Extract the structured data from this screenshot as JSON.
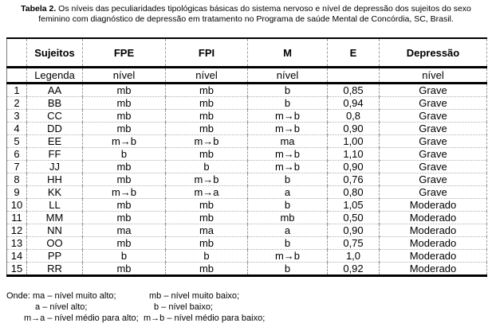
{
  "title": {
    "prefix": "Tabela 2.",
    "line1": " Os níveis das peculiaridades tipológicas básicas do sistema nervoso e nível de depressão dos sujeitos do sexo",
    "line2": "feminino com diagnóstico de depressão em tratamento no Programa de saúde Mental de Concórdia, SC, Brasil."
  },
  "table": {
    "columns": [
      "",
      "Sujeitos",
      "FPE",
      "FPI",
      "M",
      "E",
      "Depressão"
    ],
    "subheader": [
      "",
      "Legenda",
      "nível",
      "nível",
      "nível",
      "",
      "nível"
    ],
    "rows": [
      {
        "num": "1",
        "sujeito": "AA",
        "fpe": "mb",
        "fpi": "mb",
        "m": "b",
        "e": "0,85",
        "depressao": "Grave"
      },
      {
        "num": "2",
        "sujeito": "BB",
        "fpe": "mb",
        "fpi": "mb",
        "m": "b",
        "e": "0,94",
        "depressao": "Grave"
      },
      {
        "num": "3",
        "sujeito": "CC",
        "fpe": "mb",
        "fpi": "mb",
        "m": "m→b",
        "e": "0,8",
        "depressao": "Grave"
      },
      {
        "num": "4",
        "sujeito": "DD",
        "fpe": "mb",
        "fpi": "mb",
        "m": "m→b",
        "e": "0,90",
        "depressao": "Grave"
      },
      {
        "num": "5",
        "sujeito": "EE",
        "fpe": "m→b",
        "fpi": "m→b",
        "m": "ma",
        "e": "1,00",
        "depressao": "Grave"
      },
      {
        "num": "6",
        "sujeito": "FF",
        "fpe": "b",
        "fpi": "mb",
        "m": "m→b",
        "e": "1,10",
        "depressao": "Grave"
      },
      {
        "num": "7",
        "sujeito": "JJ",
        "fpe": "mb",
        "fpi": "b",
        "m": "m→b",
        "e": "0,90",
        "depressao": "Grave"
      },
      {
        "num": "8",
        "sujeito": "HH",
        "fpe": "mb",
        "fpi": "m→b",
        "m": "b",
        "e": "0,76",
        "depressao": "Grave"
      },
      {
        "num": "9",
        "sujeito": "KK",
        "fpe": "m→b",
        "fpi": "m→a",
        "m": "a",
        "e": "0,80",
        "depressao": "Grave"
      },
      {
        "num": "10",
        "sujeito": "LL",
        "fpe": "mb",
        "fpi": "mb",
        "m": "b",
        "e": "1,05",
        "depressao": "Moderado"
      },
      {
        "num": "11",
        "sujeito": "MM",
        "fpe": "mb",
        "fpi": "mb",
        "m": "mb",
        "e": "0,50",
        "depressao": "Moderado"
      },
      {
        "num": "12",
        "sujeito": "NN",
        "fpe": "ma",
        "fpi": "ma",
        "m": "a",
        "e": "0,90",
        "depressao": "Moderado"
      },
      {
        "num": "13",
        "sujeito": "OO",
        "fpe": "mb",
        "fpi": "mb",
        "m": "b",
        "e": "0,75",
        "depressao": "Moderado"
      },
      {
        "num": "14",
        "sujeito": "PP",
        "fpe": "b",
        "fpi": "b",
        "m": "m→b",
        "e": "1,0",
        "depressao": "Moderado"
      },
      {
        "num": "15",
        "sujeito": "RR",
        "fpe": "mb",
        "fpi": "mb",
        "m": "b",
        "e": "0,92",
        "depressao": "Moderado"
      }
    ]
  },
  "legend": {
    "left": [
      "Onde: ma – nível muito alto;",
      "a – nível alto;",
      "m→a – nível médio para alto;"
    ],
    "right": [
      "mb – nível muito baixo;",
      "b – nível baixo;",
      "m→b – nível médio para baixo;"
    ]
  }
}
